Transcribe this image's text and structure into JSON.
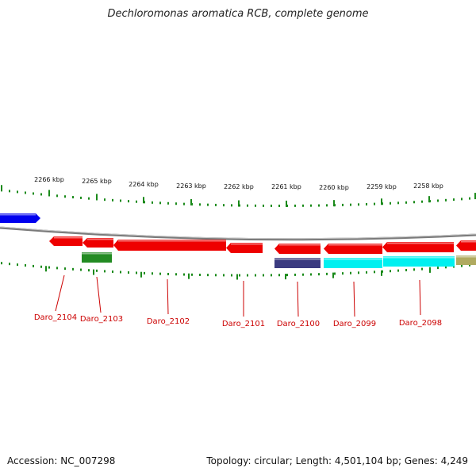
{
  "title": "Dechloromonas aromatica RCB, complete genome",
  "footer": {
    "accession": "Accession: NC_007298",
    "topology": "Topology: circular; Length: 4,501,104 bp; Genes: 4,249"
  },
  "colors": {
    "backbone": "#7a7a7a",
    "tick": "#1a8a1a",
    "label": "#cc0000",
    "gene_red": "#ee0000",
    "gene_green": "#228b22",
    "gene_navy": "#3b3b80",
    "gene_cyan": "#00f0f0",
    "gene_blue": "#0000ee",
    "gene_olive": "#b0aa60"
  },
  "scale_labels": [
    "2266 kbp",
    "2265 kbp",
    "2264 kbp",
    "2263 kbp",
    "2262 kbp",
    "2261 kbp",
    "2260 kbp",
    "2259 kbp",
    "2258 kbp"
  ],
  "gene_labels": [
    "Daro_2104",
    "Daro_2103",
    "Daro_2102",
    "Daro_2101",
    "Daro_2100",
    "Daro_2099",
    "Daro_2098"
  ],
  "features": [
    {
      "name": "gene-blue-left",
      "color": "blue"
    },
    {
      "name": "gene-daro-2104",
      "color": "red"
    },
    {
      "name": "gene-daro-2103-red",
      "color": "red"
    },
    {
      "name": "gene-daro-2102",
      "color": "red"
    },
    {
      "name": "gene-daro-2101",
      "color": "red"
    },
    {
      "name": "gene-daro-2100",
      "color": "red"
    },
    {
      "name": "gene-daro-2099",
      "color": "red"
    },
    {
      "name": "gene-daro-2098",
      "color": "red"
    },
    {
      "name": "gene-red-right",
      "color": "red"
    },
    {
      "name": "cds-daro-2103-green",
      "color": "green"
    },
    {
      "name": "cds-daro-2100-navy",
      "color": "navy"
    },
    {
      "name": "cds-daro-2099-cyan",
      "color": "cyan"
    },
    {
      "name": "cds-daro-2098-cyan",
      "color": "cyan"
    },
    {
      "name": "cds-olive-right",
      "color": "olive"
    }
  ]
}
